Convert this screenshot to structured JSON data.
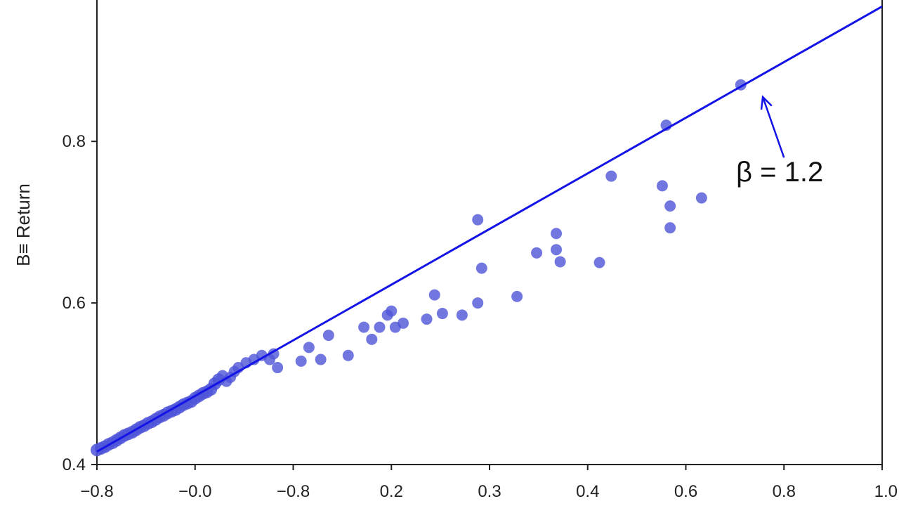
{
  "chart_data": {
    "type": "scatter",
    "title": "",
    "xlabel": "",
    "ylabel": "B≡ Return",
    "x_tick_labels": [
      "−0.8",
      "−0.0",
      "−0.8",
      "0.2",
      "0.3",
      "0.4",
      "0.6",
      "0.8",
      "1.0"
    ],
    "y_ticks": [
      0.4,
      0.6,
      0.8
    ],
    "y_tick_labels": [
      "0.4",
      "0.6",
      "0.8"
    ],
    "ylim": [
      0.4,
      0.975
    ],
    "grid": false,
    "colors": {
      "points": "#4f55d8",
      "line": "#1414e6"
    },
    "regression_line": {
      "x": [
        0.0,
        1.0
      ],
      "y": [
        0.416,
        0.967
      ]
    },
    "annotation": {
      "text": "β = 1.2",
      "arrow_tip": [
        0.848,
        0.855
      ],
      "arrow_tail": [
        0.875,
        0.78
      ]
    },
    "x_scale_note_index_positions": [
      0,
      0.125,
      0.25,
      0.375,
      0.5,
      0.625,
      0.75,
      0.875,
      1.0
    ],
    "points": [
      [
        0.0,
        0.418
      ],
      [
        0.005,
        0.42
      ],
      [
        0.01,
        0.422
      ],
      [
        0.015,
        0.425
      ],
      [
        0.02,
        0.427
      ],
      [
        0.025,
        0.43
      ],
      [
        0.03,
        0.433
      ],
      [
        0.035,
        0.436
      ],
      [
        0.04,
        0.438
      ],
      [
        0.045,
        0.44
      ],
      [
        0.05,
        0.443
      ],
      [
        0.055,
        0.446
      ],
      [
        0.06,
        0.448
      ],
      [
        0.065,
        0.451
      ],
      [
        0.07,
        0.453
      ],
      [
        0.075,
        0.456
      ],
      [
        0.08,
        0.459
      ],
      [
        0.085,
        0.461
      ],
      [
        0.09,
        0.464
      ],
      [
        0.095,
        0.466
      ],
      [
        0.1,
        0.468
      ],
      [
        0.105,
        0.471
      ],
      [
        0.11,
        0.474
      ],
      [
        0.115,
        0.476
      ],
      [
        0.12,
        0.478
      ],
      [
        0.125,
        0.482
      ],
      [
        0.13,
        0.485
      ],
      [
        0.135,
        0.488
      ],
      [
        0.14,
        0.49
      ],
      [
        0.145,
        0.493
      ],
      [
        0.15,
        0.5
      ],
      [
        0.155,
        0.505
      ],
      [
        0.16,
        0.51
      ],
      [
        0.165,
        0.503
      ],
      [
        0.17,
        0.508
      ],
      [
        0.175,
        0.515
      ],
      [
        0.18,
        0.52
      ],
      [
        0.19,
        0.526
      ],
      [
        0.2,
        0.53
      ],
      [
        0.21,
        0.535
      ],
      [
        0.22,
        0.53
      ],
      [
        0.23,
        0.52
      ],
      [
        0.225,
        0.537
      ],
      [
        0.26,
        0.528
      ],
      [
        0.27,
        0.545
      ],
      [
        0.285,
        0.53
      ],
      [
        0.295,
        0.56
      ],
      [
        0.32,
        0.535
      ],
      [
        0.34,
        0.57
      ],
      [
        0.35,
        0.555
      ],
      [
        0.36,
        0.57
      ],
      [
        0.37,
        0.585
      ],
      [
        0.375,
        0.59
      ],
      [
        0.38,
        0.57
      ],
      [
        0.39,
        0.575
      ],
      [
        0.42,
        0.58
      ],
      [
        0.43,
        0.61
      ],
      [
        0.44,
        0.587
      ],
      [
        0.465,
        0.585
      ],
      [
        0.49,
        0.643
      ],
      [
        0.485,
        0.6
      ],
      [
        0.485,
        0.703
      ],
      [
        0.535,
        0.608
      ],
      [
        0.56,
        0.662
      ],
      [
        0.585,
        0.666
      ],
      [
        0.585,
        0.686
      ],
      [
        0.59,
        0.651
      ],
      [
        0.64,
        0.65
      ],
      [
        0.655,
        0.757
      ],
      [
        0.72,
        0.745
      ],
      [
        0.73,
        0.72
      ],
      [
        0.73,
        0.693
      ],
      [
        0.725,
        0.82
      ],
      [
        0.77,
        0.73
      ],
      [
        0.82,
        0.87
      ]
    ]
  }
}
